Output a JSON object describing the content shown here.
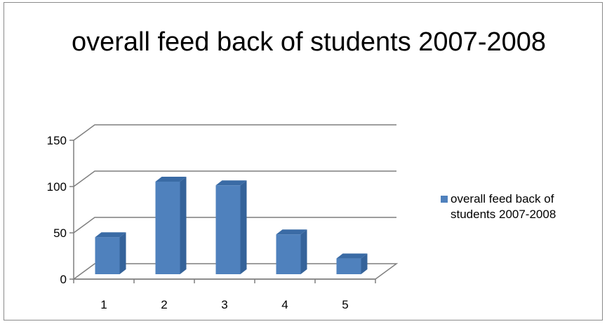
{
  "chart_data": {
    "type": "bar",
    "title": "overall feed back of students 2007-2008",
    "categories": [
      "1",
      "2",
      "3",
      "4",
      "5"
    ],
    "series": [
      {
        "name": "overall feed back of students 2007-2008",
        "values": [
          40,
          100,
          96,
          43,
          17
        ]
      }
    ],
    "y_ticks": [
      "0",
      "50",
      "100",
      "150"
    ],
    "ylim": [
      0,
      150
    ],
    "grid": true,
    "legend_position": "right",
    "three_d": true,
    "colors": {
      "bar_front": "#4F81BD",
      "bar_side": "#35639A",
      "bar_top": "#3A6BA5",
      "grid": "#7F7F7F",
      "axis": "#7F7F7F"
    }
  }
}
